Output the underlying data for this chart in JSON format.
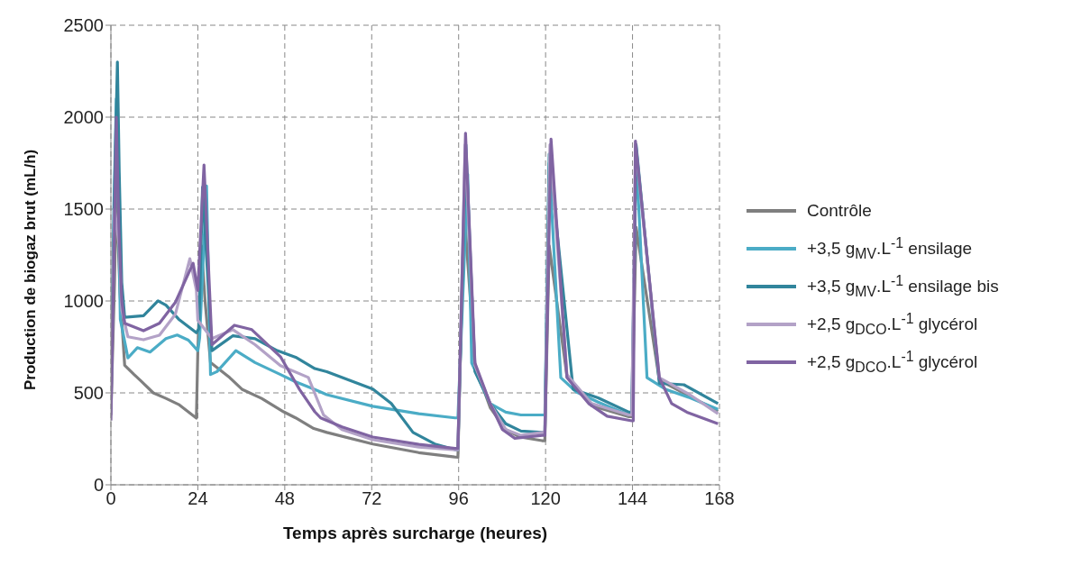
{
  "chart_data": {
    "type": "line",
    "xlabel": "Temps après surcharge (heures)",
    "ylabel": "Production de biogaz brut (mL/h)",
    "xlim": [
      0,
      168
    ],
    "xticks": [
      0,
      24,
      48,
      72,
      96,
      120,
      144,
      168
    ],
    "ylim": [
      0,
      2500
    ],
    "yticks": [
      0,
      500,
      1000,
      1500,
      2000,
      2500
    ],
    "grid": true,
    "legend": "right",
    "line_style": "solid",
    "marker": "none",
    "series": [
      {
        "name": "Contrôle",
        "color": "#7f7f7f",
        "x": [
          0,
          1,
          1.5,
          2.5,
          3.8,
          6.4,
          8.2,
          11.7,
          15.2,
          18.7,
          23.6,
          24,
          25,
          26,
          27.5,
          32.8,
          36.3,
          41.6,
          47.7,
          51,
          56,
          59.6,
          72.3,
          85,
          94.9,
          95.8,
          97.5,
          100.5,
          104.7,
          109,
          113,
          119,
          119.8,
          121,
          125.9,
          132.7,
          143,
          143.8,
          145,
          151.4,
          160,
          167.6
        ],
        "values": [
          380,
          1100,
          1600,
          1050,
          650,
          600,
          567,
          500,
          470,
          437,
          363,
          730,
          1300,
          1000,
          665,
          583,
          518,
          470,
          397,
          364,
          306,
          285,
          222,
          175,
          151,
          150,
          1500,
          650,
          420,
          300,
          260,
          240,
          240,
          1300,
          590,
          430,
          370,
          370,
          1400,
          570,
          480,
          400
        ]
      },
      {
        "name": "+3,5 g$_{MV}$.L$^{-1}$ ensilage",
        "color": "#4bacc6",
        "x": [
          0,
          0.8,
          1.5,
          2,
          2.6,
          4.7,
          7.3,
          10.8,
          15.2,
          18.3,
          21.4,
          24,
          24.5,
          26.4,
          27.5,
          29.3,
          34.5,
          39.8,
          46.8,
          51,
          56.3,
          59.6,
          72.3,
          85,
          95,
          95.8,
          98.5,
          99.6,
          104.7,
          109,
          113.2,
          119.1,
          119.8,
          121,
          124.2,
          128.5,
          134.5,
          143,
          143.8,
          145,
          148,
          153.1,
          159.9,
          167.6
        ],
        "values": [
          450,
          1500,
          2100,
          1600,
          900,
          690,
          746,
          722,
          795,
          815,
          787,
          730,
          800,
          1626,
          600,
          616,
          730,
          665,
          600,
          560,
          518,
          490,
          427,
          387,
          364,
          364,
          1690,
          663,
          442,
          395,
          380,
          380,
          380,
          1750,
          583,
          505,
          450,
          380,
          380,
          1800,
          583,
          520,
          473,
          411
        ]
      },
      {
        "name": "+3,5 g$_{MV}$.L$^{-1}$ ensilage bis",
        "color": "#31859c",
        "x": [
          0,
          1,
          1.8,
          2.3,
          3,
          3.8,
          9,
          13,
          15.2,
          18.7,
          23.6,
          24.3,
          25.3,
          27.9,
          33.7,
          39.8,
          45.9,
          51,
          56.3,
          59.6,
          72.3,
          77.4,
          83.4,
          89.4,
          95,
          95.8,
          98,
          100.5,
          104.7,
          109,
          113.2,
          119.1,
          119.8,
          121,
          127.6,
          134.5,
          143,
          143.8,
          145,
          151.4,
          158.2,
          167.6
        ],
        "values": [
          400,
          1600,
          2300,
          1700,
          1100,
          911,
          920,
          1001,
          977,
          901,
          827,
          850,
          1620,
          730,
          811,
          795,
          730,
          694,
          632,
          615,
          521,
          442,
          285,
          222,
          191,
          191,
          1850,
          616,
          442,
          332,
          292,
          285,
          285,
          1800,
          520,
          473,
          395,
          395,
          1850,
          552,
          544,
          442
        ]
      },
      {
        "name": "+2,5 g$_{DCO}$.L$^{-1}$ glycérol",
        "color": "#b3a2c7",
        "x": [
          0,
          1,
          1.5,
          2.3,
          3,
          4.7,
          9,
          13.4,
          17.8,
          21.8,
          23.6,
          24,
          25.3,
          27.9,
          33.7,
          39.8,
          46.8,
          54.5,
          58.7,
          63.8,
          72.3,
          85,
          95,
          95.8,
          97.8,
          100.5,
          104.7,
          109,
          113.2,
          119.1,
          119.8,
          121.2,
          125.9,
          132.7,
          143,
          143.8,
          144.8,
          151.4,
          159.9,
          167.6
        ],
        "values": [
          380,
          1500,
          null,
          1300,
          950,
          805,
          789,
          814,
          928,
          1230,
          1058,
          895,
          null,
          795,
          844,
          762,
          648,
          584,
          380,
          300,
          245,
          205,
          190,
          190,
          1850,
          649,
          442,
          300,
          269,
          285,
          285,
          1850,
          599,
          442,
          380,
          380,
          1850,
          583,
          489,
          387
        ]
      },
      {
        "name": "+2,5 g$_{DCO}$.L$^{-1}$ glycérol",
        "color": "#8064a2",
        "x": [
          0,
          0.8,
          1.5,
          2.2,
          3,
          3.8,
          9,
          13.4,
          17.8,
          22.7,
          24,
          25.7,
          27.9,
          34.1,
          38.9,
          46.8,
          52.1,
          56.3,
          57.9,
          63.8,
          72.3,
          85,
          95,
          95.8,
          97.9,
          100.5,
          104.7,
          108.1,
          111.5,
          119.1,
          119.8,
          121.5,
          125.9,
          131.9,
          137,
          143.8,
          144.2,
          144.8,
          151.4,
          154.8,
          159,
          167.6
        ],
        "values": [
          350,
          1200,
          2000,
          1400,
          1000,
          879,
          838,
          879,
          993,
          1205,
          1058,
          1740,
          762,
          868,
          844,
          697,
          518,
          397,
          364,
          315,
          260,
          220,
          198,
          198,
          1913,
          663,
          442,
          300,
          253,
          269,
          269,
          1881,
          583,
          442,
          373,
          348,
          348,
          1870,
          583,
          442,
          395,
          332
        ]
      }
    ]
  }
}
